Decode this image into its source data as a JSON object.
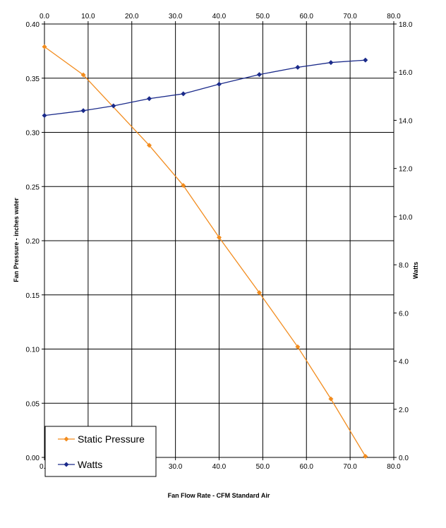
{
  "chart_data": {
    "type": "line",
    "title": "",
    "xlabel": "Fan Flow Rate - CFM Standard Air",
    "ylabel": "Fan Pressure - inches water",
    "y2label": "Watts",
    "xlim": [
      0,
      80
    ],
    "ylim": [
      0,
      0.4
    ],
    "y2lim": [
      0,
      18
    ],
    "x_ticks": [
      "0.0",
      "10.0",
      "20.0",
      "30.0",
      "40.0",
      "50.0",
      "60.0",
      "70.0",
      "80.0"
    ],
    "y_ticks": [
      "0.00",
      "0.05",
      "0.10",
      "0.15",
      "0.20",
      "0.25",
      "0.30",
      "0.35",
      "0.40"
    ],
    "y2_ticks": [
      "0.0",
      "2.0",
      "4.0",
      "6.0",
      "8.0",
      "10.0",
      "12.0",
      "14.0",
      "16.0",
      "18.0"
    ],
    "grid": true,
    "legend_position": "bottom-left",
    "series": [
      {
        "name": "Static Pressure",
        "axis": "left",
        "color": "#f28c1e",
        "marker": "diamond",
        "x": [
          0.0,
          8.9,
          24.0,
          31.8,
          40.0,
          49.2,
          58.0,
          65.6,
          73.5
        ],
        "y": [
          0.379,
          0.353,
          0.288,
          0.251,
          0.203,
          0.152,
          0.102,
          0.054,
          0.001
        ]
      },
      {
        "name": "Watts",
        "axis": "right",
        "color": "#1a2a8a",
        "marker": "diamond",
        "x": [
          0.0,
          8.9,
          15.8,
          24.0,
          31.8,
          40.0,
          49.2,
          58.0,
          65.6,
          73.5
        ],
        "y": [
          14.2,
          14.4,
          14.6,
          14.9,
          15.1,
          15.5,
          15.9,
          16.2,
          16.4,
          16.5
        ]
      }
    ]
  }
}
